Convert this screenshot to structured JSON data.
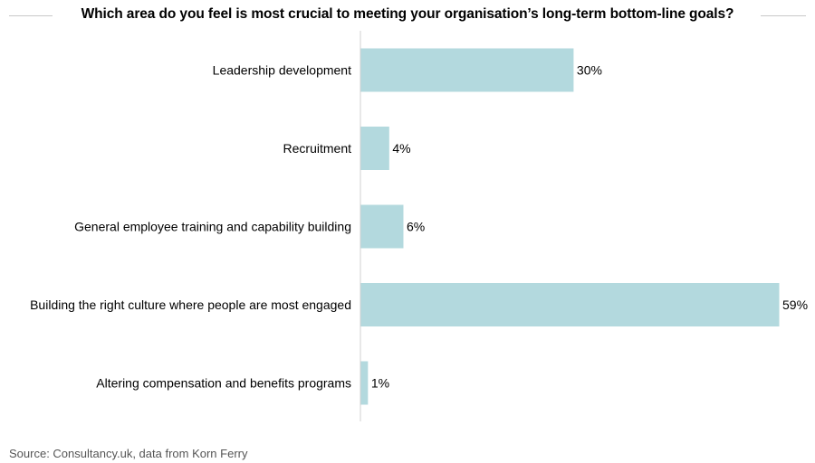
{
  "chart_data": {
    "type": "bar",
    "orientation": "horizontal",
    "title": "Which area do you feel is most crucial to meeting your organisation’s long-term bottom-line goals?",
    "categories": [
      "Leadership development",
      "Recruitment",
      "General employee training and capability building",
      "Building the right culture where people are most engaged",
      "Altering compensation and benefits programs"
    ],
    "values": [
      30,
      4,
      6,
      59,
      1
    ],
    "value_labels": [
      "30%",
      "4%",
      "6%",
      "59%",
      "1%"
    ],
    "unit": "%",
    "xlim": [
      0,
      59
    ],
    "grid": false,
    "legend": "none"
  },
  "colors": {
    "bar": "#b3d9de",
    "axis": "#d0d0d0",
    "text": "#000000",
    "source": "#555555"
  },
  "source": "Source: Consultancy.uk, data from Korn Ferry"
}
